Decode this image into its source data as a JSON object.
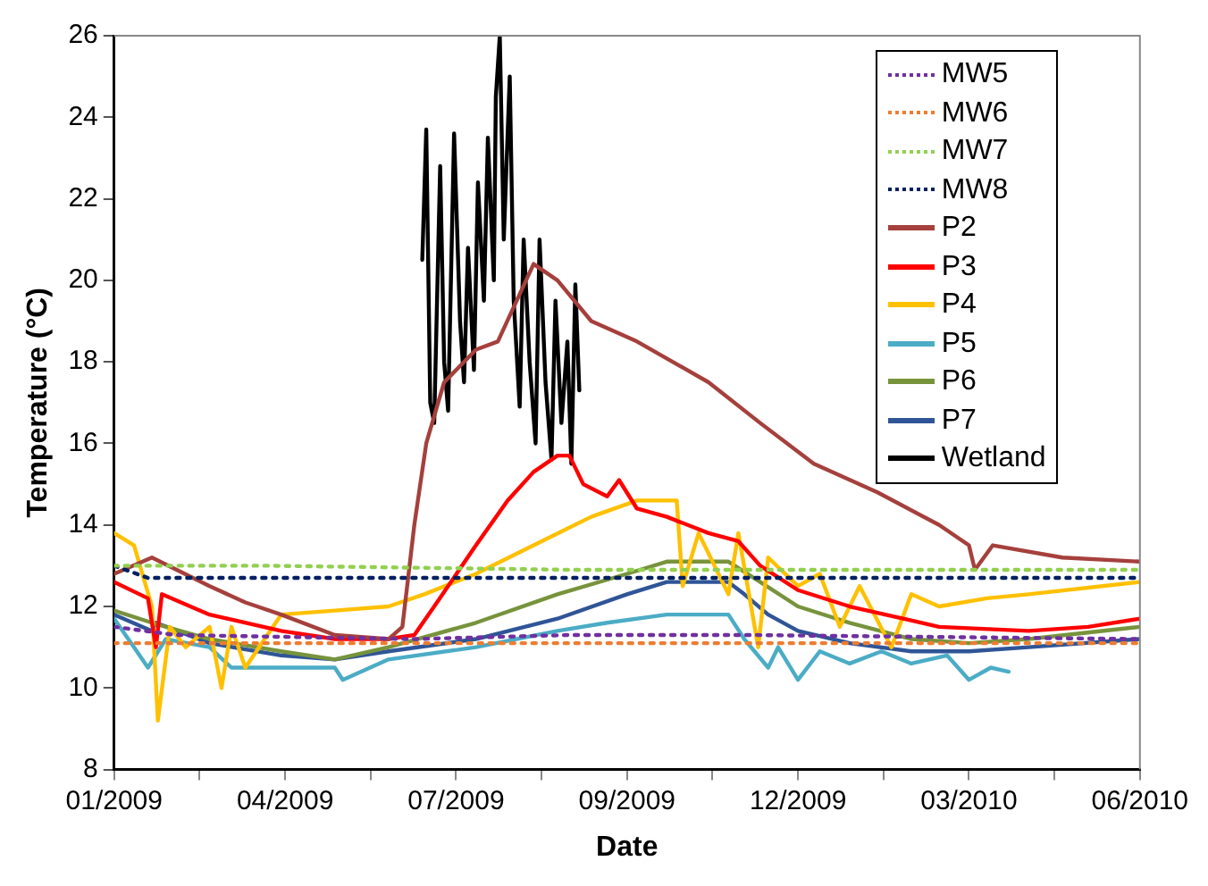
{
  "chart_data": {
    "type": "line",
    "xlabel": "Date",
    "ylabel": "Temperature (°C)",
    "xlim": [
      "2009-01-15",
      "2010-06-15"
    ],
    "xticks": [
      {
        "value": "2009-01-15",
        "label": "01/2009"
      },
      {
        "value": "2009-02-27",
        "label": null
      },
      {
        "value": "2009-04-11",
        "label": "04/2009"
      },
      {
        "value": "2009-05-24",
        "label": null
      },
      {
        "value": "2009-07-06",
        "label": "07/2009"
      },
      {
        "value": "2009-08-18",
        "label": null
      },
      {
        "value": "2009-09-30",
        "label": "09/2009"
      },
      {
        "value": "2009-11-12",
        "label": null
      },
      {
        "value": "2009-12-25",
        "label": "12/2009"
      },
      {
        "value": "2010-02-06",
        "label": null
      },
      {
        "value": "2010-03-21",
        "label": "03/2010"
      },
      {
        "value": "2010-05-03",
        "label": null
      },
      {
        "value": "2010-06-15",
        "label": "06/2010"
      }
    ],
    "ylim": [
      8,
      26
    ],
    "yticks": [
      8,
      10,
      12,
      14,
      16,
      18,
      20,
      22,
      24,
      26
    ],
    "grid": false,
    "legend": "top right",
    "marker": "none",
    "series": [
      {
        "name": "MW5",
        "color": "#7030a0",
        "line_style": "dotted",
        "x": [
          "2009-01-15",
          "2009-02-15",
          "2009-06-15",
          "2009-09-01",
          "2009-12-01",
          "2010-06-15"
        ],
        "values": [
          11.5,
          11.3,
          11.2,
          11.3,
          11.3,
          11.2
        ]
      },
      {
        "name": "MW6",
        "color": "#ed7d31",
        "line_style": "dotted",
        "x": [
          "2009-01-15",
          "2009-03-01",
          "2009-08-01",
          "2009-12-01",
          "2010-06-15"
        ],
        "values": [
          11.1,
          11.1,
          11.1,
          11.1,
          11.1
        ]
      },
      {
        "name": "MW7",
        "color": "#92d050",
        "line_style": "dotted",
        "x": [
          "2009-01-15",
          "2009-04-01",
          "2009-09-01",
          "2010-01-01",
          "2010-06-15"
        ],
        "values": [
          13.0,
          13.0,
          12.9,
          12.9,
          12.9
        ]
      },
      {
        "name": "MW8",
        "color": "#002060",
        "line_style": "dotted",
        "x": [
          "2009-01-15",
          "2009-02-01",
          "2009-06-15",
          "2010-01-01",
          "2010-06-15"
        ],
        "values": [
          13.0,
          12.7,
          12.7,
          12.7,
          12.7
        ]
      },
      {
        "name": "P2",
        "color": "#a5403c",
        "line_style": "solid",
        "x": [
          "2009-01-15",
          "2009-02-03",
          "2009-03-04",
          "2009-03-22",
          "2009-04-09",
          "2009-05-06",
          "2009-06-02",
          "2009-06-09",
          "2009-06-15",
          "2009-06-21",
          "2009-06-30",
          "2009-07-16",
          "2009-07-27",
          "2009-08-14",
          "2009-08-26",
          "2009-09-12",
          "2009-10-05",
          "2009-11-10",
          "2009-12-06",
          "2010-01-02",
          "2010-02-03",
          "2010-03-06",
          "2010-03-21",
          "2010-03-24",
          "2010-04-02",
          "2010-05-07",
          "2010-06-15"
        ],
        "values": [
          12.8,
          13.2,
          12.5,
          12.1,
          11.8,
          11.3,
          11.2,
          11.5,
          14,
          16,
          17.5,
          18.3,
          18.5,
          20.4,
          20,
          19,
          18.5,
          17.5,
          16.5,
          15.5,
          14.8,
          14,
          13.5,
          12.9,
          13.5,
          13.2,
          13.1
        ]
      },
      {
        "name": "P3",
        "color": "#ff0000",
        "line_style": "solid",
        "x": [
          "2009-01-15",
          "2009-02-01",
          "2009-02-05",
          "2009-02-08",
          "2009-03-04",
          "2009-04-09",
          "2009-05-06",
          "2009-06-02",
          "2009-06-15",
          "2009-06-25",
          "2009-07-16",
          "2009-08-01",
          "2009-08-14",
          "2009-08-26",
          "2009-09-01",
          "2009-09-08",
          "2009-09-20",
          "2009-09-26",
          "2009-10-05",
          "2009-10-20",
          "2009-11-10",
          "2009-11-25",
          "2009-12-06",
          "2009-12-25",
          "2010-01-20",
          "2010-03-06",
          "2010-04-20",
          "2010-05-20",
          "2010-06-15"
        ],
        "values": [
          12.6,
          12.2,
          11,
          12.3,
          11.8,
          11.4,
          11.2,
          11.2,
          11.3,
          12,
          13.5,
          14.6,
          15.3,
          15.7,
          15.7,
          15,
          14.7,
          15.1,
          14.4,
          14.2,
          13.8,
          13.6,
          13,
          12.4,
          12,
          11.5,
          11.4,
          11.5,
          11.7
        ]
      },
      {
        "name": "P4",
        "color": "#ffc000",
        "line_style": "solid",
        "x": [
          "2009-01-15",
          "2009-01-25",
          "2009-02-03",
          "2009-02-06",
          "2009-02-12",
          "2009-02-20",
          "2009-03-04",
          "2009-03-10",
          "2009-03-15",
          "2009-03-22",
          "2009-04-09",
          "2009-05-06",
          "2009-06-02",
          "2009-06-20",
          "2009-07-16",
          "2009-08-14",
          "2009-09-12",
          "2009-10-05",
          "2009-10-25",
          "2009-10-28",
          "2009-11-05",
          "2009-11-20",
          "2009-11-25",
          "2009-12-05",
          "2009-12-10",
          "2009-12-25",
          "2010-01-05",
          "2010-01-15",
          "2010-01-25",
          "2010-02-10",
          "2010-02-20",
          "2010-03-06",
          "2010-03-30",
          "2010-04-20",
          "2010-06-15"
        ],
        "values": [
          13.8,
          13.5,
          12,
          9.2,
          11.5,
          11,
          11.5,
          10,
          11.5,
          10.5,
          11.8,
          11.9,
          12,
          12.3,
          12.8,
          13.5,
          14.2,
          14.6,
          14.6,
          12.5,
          13.8,
          12.3,
          13.8,
          11,
          13.2,
          12.5,
          12.8,
          11.5,
          12.5,
          11,
          12.3,
          12,
          12.2,
          12.3,
          12.6
        ]
      },
      {
        "name": "P5",
        "color": "#4bacc6",
        "line_style": "solid",
        "x": [
          "2009-01-15",
          "2009-01-25",
          "2009-02-01",
          "2009-02-10",
          "2009-03-04",
          "2009-03-15",
          "2009-04-09",
          "2009-05-06",
          "2009-05-10",
          "2009-06-02",
          "2009-07-16",
          "2009-08-26",
          "2009-09-20",
          "2009-10-20",
          "2009-11-20",
          "2009-11-28",
          "2009-12-10",
          "2009-12-15",
          "2009-12-25",
          "2010-01-05",
          "2010-01-20",
          "2010-02-05",
          "2010-02-20",
          "2010-03-10",
          "2010-03-21",
          "2010-04-01",
          "2010-04-10"
        ],
        "values": [
          11.7,
          11,
          10.5,
          11.2,
          11,
          10.5,
          10.5,
          10.5,
          10.2,
          10.7,
          11,
          11.4,
          11.6,
          11.8,
          11.8,
          11.2,
          10.5,
          11,
          10.2,
          10.9,
          10.6,
          10.9,
          10.6,
          10.8,
          10.2,
          10.5,
          10.4
        ]
      },
      {
        "name": "P6",
        "color": "#77933c",
        "line_style": "solid",
        "x": [
          "2009-01-15",
          "2009-02-03",
          "2009-03-04",
          "2009-04-09",
          "2009-05-06",
          "2009-06-02",
          "2009-07-16",
          "2009-08-26",
          "2009-09-30",
          "2009-10-20",
          "2009-11-20",
          "2009-12-06",
          "2009-12-25",
          "2010-01-20",
          "2010-02-20",
          "2010-03-21",
          "2010-04-20",
          "2010-06-15"
        ],
        "values": [
          11.9,
          11.6,
          11.2,
          10.9,
          10.7,
          11,
          11.6,
          12.3,
          12.8,
          13.1,
          13.1,
          12.6,
          12,
          11.6,
          11.2,
          11.1,
          11.2,
          11.5
        ]
      },
      {
        "name": "P7",
        "color": "#2f5597",
        "line_style": "solid",
        "x": [
          "2009-01-15",
          "2009-02-03",
          "2009-02-05",
          "2009-03-04",
          "2009-04-09",
          "2009-05-06",
          "2009-06-02",
          "2009-07-16",
          "2009-08-26",
          "2009-09-30",
          "2009-10-20",
          "2009-11-20",
          "2009-11-28",
          "2009-12-10",
          "2009-12-25",
          "2010-01-20",
          "2010-02-20",
          "2010-03-21",
          "2010-04-20",
          "2010-06-15"
        ],
        "values": [
          11.8,
          11.4,
          11.6,
          11.1,
          10.8,
          10.7,
          10.9,
          11.2,
          11.7,
          12.3,
          12.6,
          12.6,
          12.3,
          11.8,
          11.4,
          11.1,
          10.9,
          10.9,
          11,
          11.2
        ]
      },
      {
        "name": "Wetland",
        "color": "#000000",
        "line_style": "solid",
        "x": [
          "2009-06-19",
          "2009-06-21",
          "2009-06-23",
          "2009-06-25",
          "2009-06-28",
          "2009-06-30",
          "2009-07-02",
          "2009-07-05",
          "2009-07-08",
          "2009-07-10",
          "2009-07-12",
          "2009-07-15",
          "2009-07-17",
          "2009-07-20",
          "2009-07-22",
          "2009-07-25",
          "2009-07-26",
          "2009-07-28",
          "2009-07-30",
          "2009-08-02",
          "2009-08-04",
          "2009-08-07",
          "2009-08-09",
          "2009-08-12",
          "2009-08-15",
          "2009-08-17",
          "2009-08-20",
          "2009-08-23",
          "2009-08-25",
          "2009-08-28",
          "2009-08-31",
          "2009-09-02",
          "2009-09-04",
          "2009-09-06"
        ],
        "values": [
          20.5,
          23.7,
          17,
          16.5,
          22.8,
          18,
          16.8,
          23.6,
          19,
          17.5,
          20.8,
          17.8,
          22.4,
          19.5,
          23.5,
          20,
          24.5,
          26,
          21,
          25,
          19.5,
          16.9,
          21,
          18,
          16,
          21,
          17.5,
          15.6,
          19.5,
          16.5,
          18.5,
          15.5,
          19.9,
          17.3
        ]
      }
    ]
  }
}
